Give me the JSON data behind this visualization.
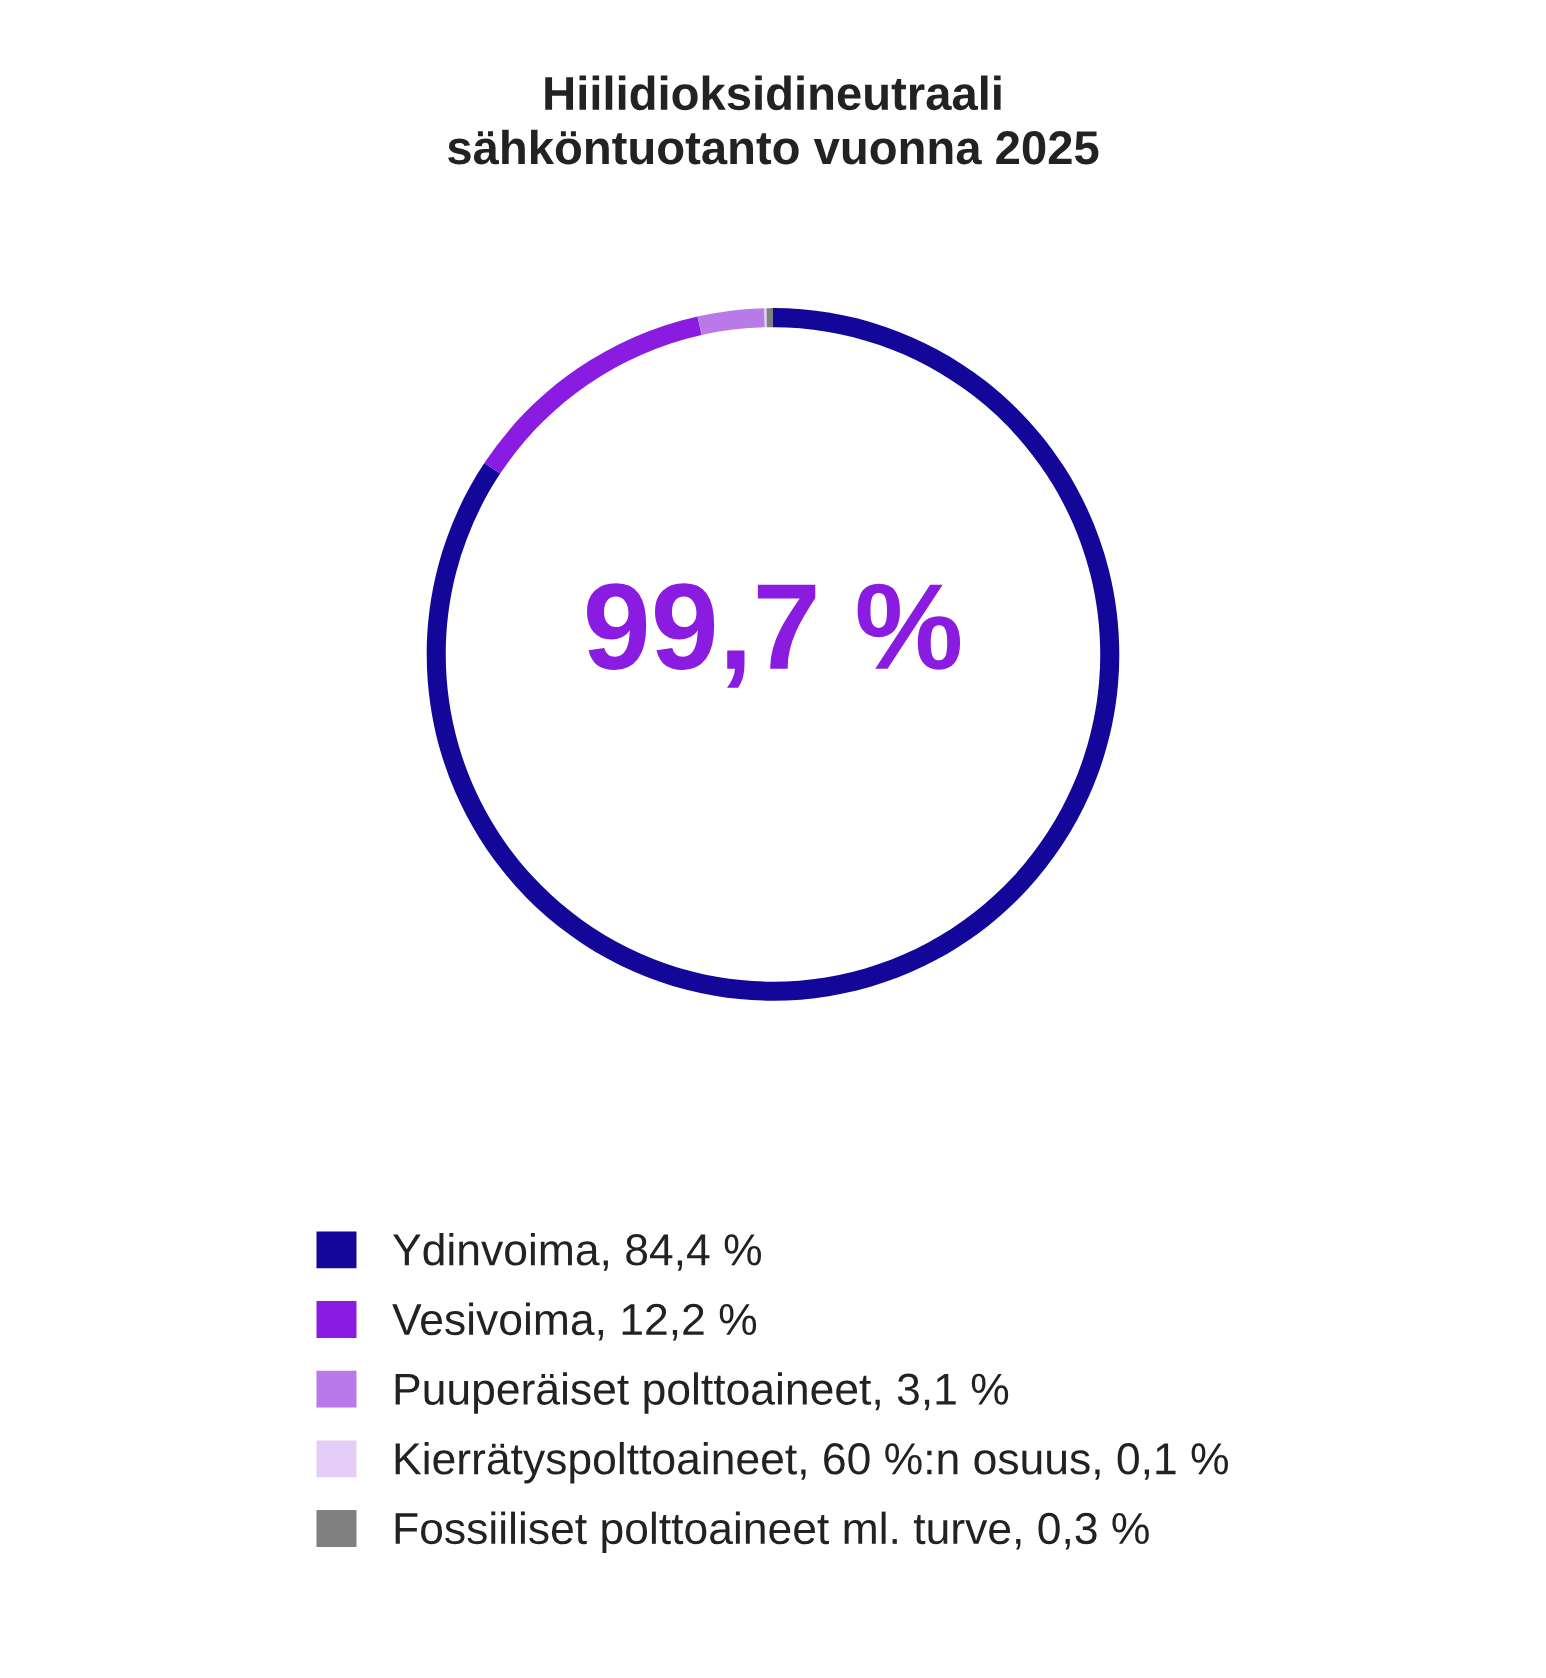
{
  "chart_data": {
    "type": "donut",
    "title": "Hiilidioksidineutraali\nsähköntuotanto vuonna 2025",
    "categories": [
      "Ydinvoima, 84,4 %",
      "Vesivoima, 12,2 %",
      "Puuperäiset polttoaineet, 3,1 %",
      "Kierrätyspolttoaineet, 60 %:n osuus, 0,1 %",
      "Fossiiliset polttoaineet ml. turve, 0,3 %"
    ],
    "values": [
      84.4,
      12.2,
      3.1,
      0.1,
      0.3
    ],
    "colors": [
      "#13079a",
      "#8a1be0",
      "#b87ae8",
      "#e4cdf7",
      "#808080"
    ],
    "annotations": [
      "99,7 %"
    ],
    "legend": "bottom"
  }
}
